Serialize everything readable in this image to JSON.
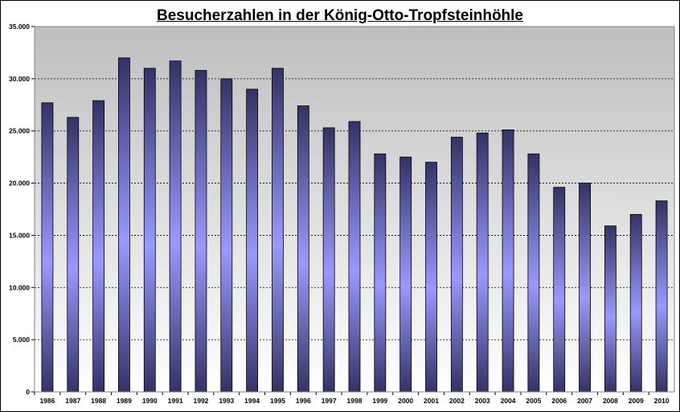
{
  "chart_data": {
    "type": "bar",
    "title": "Besucherzahlen in der König-Otto-Tropfsteinhöhle",
    "xlabel": "",
    "ylabel": "",
    "ylim": [
      0,
      35000
    ],
    "y_ticks": [
      0,
      5000,
      10000,
      15000,
      20000,
      25000,
      30000,
      35000
    ],
    "y_tick_labels": [
      "0",
      "5.000",
      "10.000",
      "15.000",
      "20.000",
      "25.000",
      "30.000",
      "35.000"
    ],
    "grid": true,
    "categories": [
      "1986",
      "1987",
      "1988",
      "1989",
      "1990",
      "1991",
      "1992",
      "1993",
      "1994",
      "1995",
      "1996",
      "1997",
      "1998",
      "1999",
      "2000",
      "2001",
      "2002",
      "2003",
      "2004",
      "2005",
      "2006",
      "2007",
      "2008",
      "2009",
      "2010"
    ],
    "values": [
      27700,
      26300,
      27900,
      32000,
      31000,
      31700,
      30800,
      30000,
      29000,
      31000,
      27400,
      25300,
      25900,
      22800,
      22500,
      22000,
      24400,
      24800,
      25100,
      22800,
      19600,
      20000,
      15900,
      17000,
      18300
    ],
    "colors": {
      "plot_background_top": "#c0c0c0",
      "bar_edge": "#333366",
      "bar_mid": "#9999ff",
      "grid": "#000000"
    }
  }
}
